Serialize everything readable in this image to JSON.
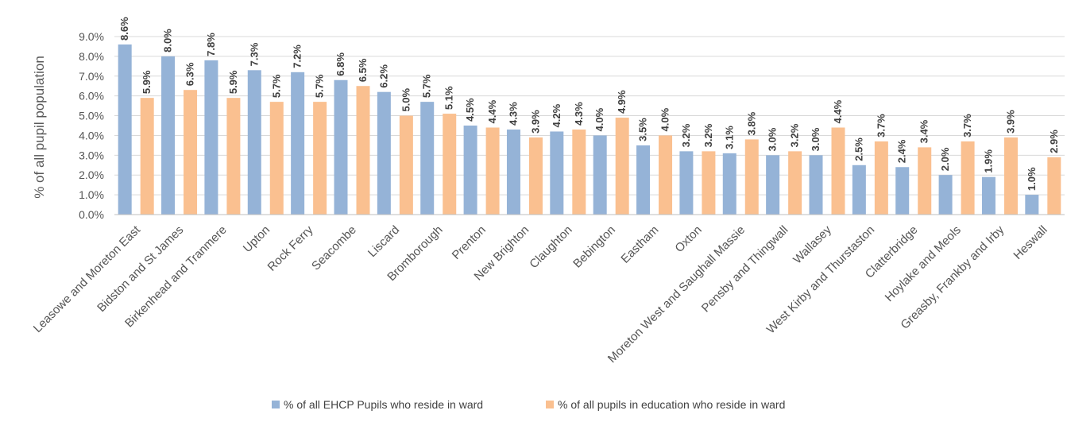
{
  "chart_data": {
    "type": "bar",
    "title": "",
    "xlabel": "",
    "ylabel": "% of all pupil population",
    "ylim": [
      0,
      9
    ],
    "yticks": [
      "0.0%",
      "1.0%",
      "2.0%",
      "3.0%",
      "4.0%",
      "5.0%",
      "6.0%",
      "7.0%",
      "8.0%",
      "9.0%"
    ],
    "grid": true,
    "legend_position": "bottom",
    "categories": [
      "Leasowe and Moreton East",
      "Bidston and St James",
      "Birkenhead and Tranmere",
      "Upton",
      "Rock Ferry",
      "Seacombe",
      "Liscard",
      "Bromborough",
      "Prenton",
      "New Brighton",
      "Claughton",
      "Bebington",
      "Eastham",
      "Oxton",
      "Moreton West and Saughall Massie",
      "Pensby and Thingwall",
      "Wallasey",
      "West Kirby and Thurstaston",
      "Clatterbridge",
      "Hoylake and Meols",
      "Greasby, Frankby and Irby",
      "Heswall"
    ],
    "series": [
      {
        "name": "% of all EHCP Pupils who reside in ward",
        "color": "#95b3d7",
        "values": [
          8.6,
          8.0,
          7.8,
          7.3,
          7.2,
          6.8,
          6.2,
          5.7,
          4.5,
          4.3,
          4.2,
          4.0,
          3.5,
          3.2,
          3.1,
          3.0,
          3.0,
          2.5,
          2.4,
          2.0,
          1.9,
          1.0
        ],
        "labels": [
          "8.6%",
          "8.0%",
          "7.8%",
          "7.3%",
          "7.2%",
          "6.8%",
          "6.2%",
          "5.7%",
          "4.5%",
          "4.3%",
          "4.2%",
          "4.0%",
          "3.5%",
          "3.2%",
          "3.1%",
          "3.0%",
          "3.0%",
          "2.5%",
          "2.4%",
          "2.0%",
          "1.9%",
          "1.0%"
        ]
      },
      {
        "name": "% of all pupils in education who reside in ward",
        "color": "#fac090",
        "values": [
          5.9,
          6.3,
          5.9,
          5.7,
          5.7,
          6.5,
          5.0,
          5.1,
          4.4,
          3.9,
          4.3,
          4.9,
          4.0,
          3.2,
          3.8,
          3.2,
          4.4,
          3.7,
          3.4,
          3.7,
          3.9,
          2.9
        ],
        "labels": [
          "5.9%",
          "6.3%",
          "5.9%",
          "5.7%",
          "5.7%",
          "6.5%",
          "5.0%",
          "5.1%",
          "4.4%",
          "3.9%",
          "4.3%",
          "4.9%",
          "4.0%",
          "3.2%",
          "3.8%",
          "3.2%",
          "4.4%",
          "3.7%",
          "3.4%",
          "3.7%",
          "3.9%",
          "2.9%"
        ]
      }
    ]
  }
}
